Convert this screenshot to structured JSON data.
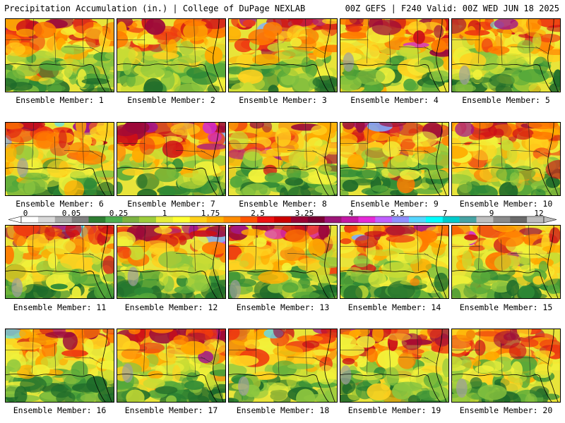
{
  "header": {
    "left": "Precipitation Accumulation (in.) | College of DuPage NEXLAB",
    "right": "00Z GEFS | F240 Valid: 00Z WED JUN 18 2025"
  },
  "colorbar": {
    "tick_labels": [
      "0",
      "0.05",
      "0.25",
      "1",
      "1.75",
      "2.5",
      "3.25",
      "4",
      "5.5",
      "7",
      "9",
      "12"
    ],
    "colors": [
      "#ffffff",
      "#d9d9d9",
      "#a8a8a8",
      "#7f7f7f",
      "#2e7d32",
      "#4caf50",
      "#7cb342",
      "#9ccc3c",
      "#e6ee3c",
      "#ffff33",
      "#ffd11a",
      "#ffb300",
      "#ff8c00",
      "#ff5500",
      "#ee1111",
      "#cc0000",
      "#990033",
      "#7a0033",
      "#9c1577",
      "#c318a4",
      "#e62ad8",
      "#c060ff",
      "#8f8fff",
      "#55d6ff",
      "#00ffff",
      "#00cccc",
      "#46a3a3",
      "#bfbfbf",
      "#8a8a8a",
      "#6a6a6a",
      "#bdbdbd"
    ]
  },
  "panels": [
    {
      "label": "Ensemble Member: 1"
    },
    {
      "label": "Ensemble Member: 2"
    },
    {
      "label": "Ensemble Member: 3"
    },
    {
      "label": "Ensemble Member: 4"
    },
    {
      "label": "Ensemble Member: 5"
    },
    {
      "label": "Ensemble Member: 6"
    },
    {
      "label": "Ensemble Member: 7"
    },
    {
      "label": "Ensemble Member: 8"
    },
    {
      "label": "Ensemble Member: 9"
    },
    {
      "label": "Ensemble Member: 10"
    },
    {
      "label": "Ensemble Member: 11"
    },
    {
      "label": "Ensemble Member: 12"
    },
    {
      "label": "Ensemble Member: 13"
    },
    {
      "label": "Ensemble Member: 14"
    },
    {
      "label": "Ensemble Member: 15"
    },
    {
      "label": "Ensemble Member: 16"
    },
    {
      "label": "Ensemble Member: 17"
    },
    {
      "label": "Ensemble Member: 18"
    },
    {
      "label": "Ensemble Member: 19"
    },
    {
      "label": "Ensemble Member: 20"
    }
  ]
}
